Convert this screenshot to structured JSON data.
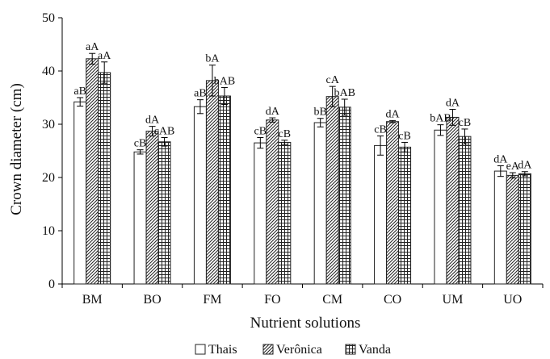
{
  "chart_data": {
    "type": "bar",
    "title": "",
    "xlabel": "Nutrient solutions",
    "ylabel": "Crown diameter (cm)",
    "ylim": [
      0,
      50
    ],
    "yticks": [
      0,
      10,
      20,
      30,
      40,
      50
    ],
    "grid": false,
    "legend_position": "bottom",
    "categories": [
      "BM",
      "BO",
      "FM",
      "FO",
      "CM",
      "CO",
      "UM",
      "UO"
    ],
    "series": [
      {
        "name": "Thais",
        "pattern": "white",
        "values": [
          34.2,
          24.8,
          33.3,
          26.5,
          30.3,
          26.0,
          28.9,
          21.2
        ],
        "errors": [
          0.8,
          0.4,
          1.3,
          1.0,
          0.8,
          1.8,
          1.0,
          1.0
        ],
        "labels": [
          "aB",
          "cB",
          "aB",
          "cB",
          "bB",
          "cB",
          "bAB",
          "dA"
        ]
      },
      {
        "name": "Verônica",
        "pattern": "diagonal",
        "values": [
          42.3,
          28.7,
          38.2,
          30.8,
          35.2,
          30.5,
          31.3,
          20.4
        ],
        "errors": [
          1.0,
          0.9,
          2.9,
          0.4,
          1.9,
          0.2,
          1.5,
          0.5
        ],
        "labels": [
          "aA",
          "dA",
          "bA",
          "dA",
          "cA",
          "dA",
          "dA",
          "eA"
        ]
      },
      {
        "name": "Vanda",
        "pattern": "grid",
        "values": [
          39.7,
          26.7,
          35.3,
          26.6,
          33.2,
          25.7,
          27.7,
          20.7
        ],
        "errors": [
          2.0,
          0.8,
          1.6,
          0.4,
          1.5,
          0.9,
          1.4,
          0.4
        ],
        "labels": [
          "aA",
          "cAB",
          "bAB",
          "cB",
          "bAB",
          "cB",
          "cB",
          "dA"
        ]
      }
    ],
    "colors": {
      "axis": "#000000",
      "bar_stroke": "#222222",
      "text": "#111111"
    }
  }
}
